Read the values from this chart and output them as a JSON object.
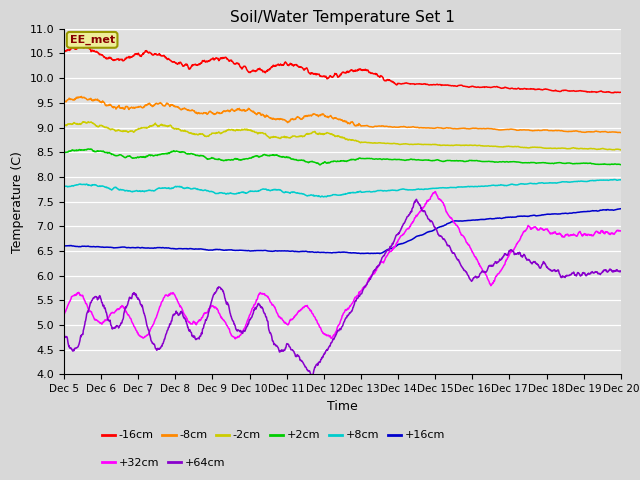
{
  "title": "Soil/Water Temperature Set 1",
  "xlabel": "Time",
  "ylabel": "Temperature (C)",
  "ylim": [
    4.0,
    11.0
  ],
  "yticks": [
    4.0,
    4.5,
    5.0,
    5.5,
    6.0,
    6.5,
    7.0,
    7.5,
    8.0,
    8.5,
    9.0,
    9.5,
    10.0,
    10.5,
    11.0
  ],
  "xlim_days": [
    5,
    20
  ],
  "xtick_labels": [
    "Dec 5",
    "Dec 6",
    "Dec 7",
    "Dec 8",
    "Dec 9",
    "Dec 10",
    "Dec 11",
    "Dec 12",
    "Dec 13",
    "Dec 14",
    "Dec 15",
    "Dec 16",
    "Dec 17",
    "Dec 18",
    "Dec 19",
    "Dec 20"
  ],
  "xtick_positions": [
    5,
    6,
    7,
    8,
    9,
    10,
    11,
    12,
    13,
    14,
    15,
    16,
    17,
    18,
    19,
    20
  ],
  "series_names": [
    "-16cm",
    "-8cm",
    "-2cm",
    "+2cm",
    "+8cm",
    "+16cm",
    "+32cm",
    "+64cm"
  ],
  "series_colors": [
    "#ff0000",
    "#ff8800",
    "#cccc00",
    "#00cc00",
    "#00cccc",
    "#0000cc",
    "#ff00ff",
    "#8800cc"
  ],
  "annotation_text": "EE_met",
  "bg_color": "#e0e0e0",
  "grid_color": "#ffffff",
  "fig_bg": "#d8d8d8"
}
